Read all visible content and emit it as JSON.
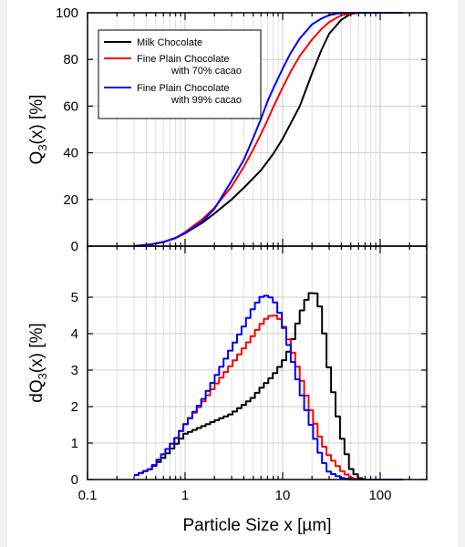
{
  "chart_data": [
    {
      "type": "line",
      "xscale": "log",
      "xlim": [
        0.1,
        300
      ],
      "ylim": [
        0,
        100
      ],
      "x_ticks": [
        "0.1",
        "1",
        "10",
        "100"
      ],
      "y_ticks": [
        "0",
        "20",
        "40",
        "60",
        "80",
        "100"
      ],
      "ylabel": {
        "main": "Q",
        "sub": "3",
        "rest": "(x)  [%]"
      },
      "legend_position": "top-left",
      "series": [
        {
          "name": "Milk Chocolate",
          "color": "#000000",
          "x": [
            0.3,
            0.45,
            0.6,
            0.8,
            1.0,
            1.5,
            2.0,
            3.0,
            4.0,
            6.0,
            8.0,
            10,
            15,
            20,
            25,
            30,
            40,
            50,
            60,
            100,
            170
          ],
          "y": [
            0,
            0.8,
            1.8,
            3.5,
            5.5,
            10,
            14,
            20,
            25,
            32.5,
            39.5,
            46,
            60,
            74,
            84,
            91,
            97,
            99.5,
            100,
            100,
            100
          ]
        },
        {
          "name": "Fine Plain Chocolate with 70% cacao",
          "name_lines": [
            "Fine Plain Chocolate",
            "with 70% cacao"
          ],
          "color": "#ff0000",
          "x": [
            0.3,
            0.45,
            0.6,
            0.8,
            1.0,
            1.5,
            2.0,
            3.0,
            4.0,
            5.0,
            6.0,
            7.0,
            8.0,
            10,
            12,
            15,
            20,
            25,
            30,
            40,
            60,
            100,
            170
          ],
          "y": [
            0,
            0.8,
            1.8,
            3.5,
            6,
            11.5,
            16.5,
            25.5,
            34,
            41.5,
            48,
            54,
            59.5,
            68,
            74.5,
            81.5,
            88.5,
            93,
            96,
            99,
            100,
            100,
            100
          ]
        },
        {
          "name": "Fine Plain Chocolate with 99% cacao",
          "name_lines": [
            "Fine Plain Chocolate",
            "with 99% cacao"
          ],
          "color": "#0000ff",
          "x": [
            0.3,
            0.45,
            0.6,
            0.8,
            1.0,
            1.5,
            2.0,
            3.0,
            4.0,
            5.0,
            6.0,
            7.0,
            8.0,
            10,
            12,
            15,
            20,
            25,
            30,
            40,
            60,
            100,
            170
          ],
          "y": [
            0,
            0.8,
            1.8,
            3.5,
            5.5,
            10.5,
            16,
            28,
            37,
            46.5,
            54.5,
            62,
            67.5,
            76,
            82.5,
            89,
            95,
            97.5,
            99,
            100,
            100,
            100,
            100
          ]
        }
      ]
    },
    {
      "type": "line",
      "step": true,
      "xscale": "log",
      "xlim": [
        0.1,
        300
      ],
      "ylim": [
        0,
        5.8
      ],
      "x_ticks": [
        "0.1",
        "1",
        "10",
        "100"
      ],
      "y_ticks": [
        "0",
        "1",
        "2",
        "3",
        "4",
        "5"
      ],
      "xlabel": "Particle Size x [µm]",
      "ylabel": {
        "main": "dQ",
        "sub": "3",
        "rest": "(x)  [%]"
      },
      "series": [
        {
          "name": "Milk Chocolate",
          "color": "#000000",
          "x": [
            0.3,
            0.45,
            0.6,
            0.8,
            1.0,
            1.5,
            2.0,
            3.0,
            4.0,
            5.0,
            6.0,
            8.0,
            10,
            12,
            15,
            18,
            20,
            22,
            25,
            30,
            40,
            50,
            60,
            70,
            100,
            170
          ],
          "y": [
            0.1,
            0.3,
            0.6,
            0.95,
            1.25,
            1.45,
            1.6,
            1.8,
            2.05,
            2.25,
            2.5,
            2.85,
            3.2,
            3.6,
            4.5,
            5.0,
            5.15,
            5.1,
            4.6,
            3.0,
            1.2,
            0.3,
            0.05,
            0,
            0,
            0
          ]
        },
        {
          "name": "Fine Plain Chocolate with 70% cacao",
          "color": "#ff0000",
          "x": [
            0.3,
            0.45,
            0.6,
            0.8,
            1.0,
            1.5,
            2.0,
            3.0,
            4.0,
            5.0,
            6.0,
            7.0,
            8.0,
            9.0,
            10,
            12,
            15,
            20,
            25,
            30,
            40,
            50,
            60,
            100,
            170
          ],
          "y": [
            0.1,
            0.3,
            0.7,
            1.1,
            1.5,
            2.1,
            2.55,
            3.15,
            3.6,
            3.95,
            4.25,
            4.45,
            4.52,
            4.45,
            4.3,
            3.7,
            2.9,
            1.8,
            1.05,
            0.65,
            0.25,
            0.05,
            0,
            0,
            0
          ]
        },
        {
          "name": "Fine Plain Chocolate with 99% cacao",
          "color": "#0000ff",
          "x": [
            0.3,
            0.45,
            0.6,
            0.8,
            1.0,
            1.5,
            2.0,
            3.0,
            4.0,
            5.0,
            6.0,
            7.0,
            8.0,
            9.0,
            10,
            12,
            15,
            20,
            25,
            30,
            40,
            50,
            60,
            100,
            170
          ],
          "y": [
            0.1,
            0.3,
            0.7,
            1.1,
            1.5,
            2.15,
            2.75,
            3.6,
            4.2,
            4.7,
            5.0,
            5.05,
            4.95,
            4.7,
            4.3,
            3.5,
            2.5,
            1.4,
            0.6,
            0.2,
            0.05,
            0,
            0,
            0,
            0
          ]
        }
      ]
    }
  ]
}
